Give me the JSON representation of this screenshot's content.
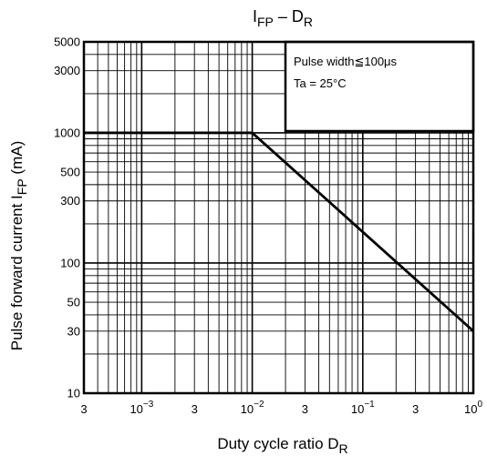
{
  "chart_data": {
    "type": "line",
    "title": {
      "main": "I",
      "sub": "FP",
      "dash": " – D",
      "dash_sub": "R"
    },
    "xlabel": {
      "main": "Duty cycle ratio   D",
      "sub": "R"
    },
    "ylabel": {
      "main": "Pulse forward current    I",
      "sub": "FP",
      "unit": "(mA)"
    },
    "x_scale": "log",
    "y_scale": "log",
    "xlim": [
      0.0003,
      1
    ],
    "ylim": [
      10,
      5000
    ],
    "x_ticks": [
      {
        "value": 0.0003,
        "label": "3",
        "exp": ""
      },
      {
        "value": 0.001,
        "label": "10",
        "exp": "−3"
      },
      {
        "value": 0.003,
        "label": "3",
        "exp": ""
      },
      {
        "value": 0.01,
        "label": "10",
        "exp": "−2"
      },
      {
        "value": 0.03,
        "label": "3",
        "exp": ""
      },
      {
        "value": 0.1,
        "label": "10",
        "exp": "−1"
      },
      {
        "value": 0.3,
        "label": "3",
        "exp": ""
      },
      {
        "value": 1,
        "label": "10",
        "exp": "0"
      }
    ],
    "y_ticks": [
      {
        "value": 10,
        "label": "10"
      },
      {
        "value": 30,
        "label": "30"
      },
      {
        "value": 50,
        "label": "50"
      },
      {
        "value": 100,
        "label": "100"
      },
      {
        "value": 300,
        "label": "300"
      },
      {
        "value": 500,
        "label": "500"
      },
      {
        "value": 1000,
        "label": "1000"
      },
      {
        "value": 3000,
        "label": "3000"
      },
      {
        "value": 5000,
        "label": "5000"
      }
    ],
    "grid": true,
    "series": [
      {
        "x": [
          0.0003,
          0.01,
          1
        ],
        "y": [
          1000,
          1000,
          30
        ]
      }
    ],
    "annotation": {
      "lines": [
        "Pulse width≦100μs",
        "Ta = 25°C"
      ],
      "placement": "top-right"
    }
  },
  "colors": {
    "line": "#000000",
    "background": "#ffffff"
  }
}
